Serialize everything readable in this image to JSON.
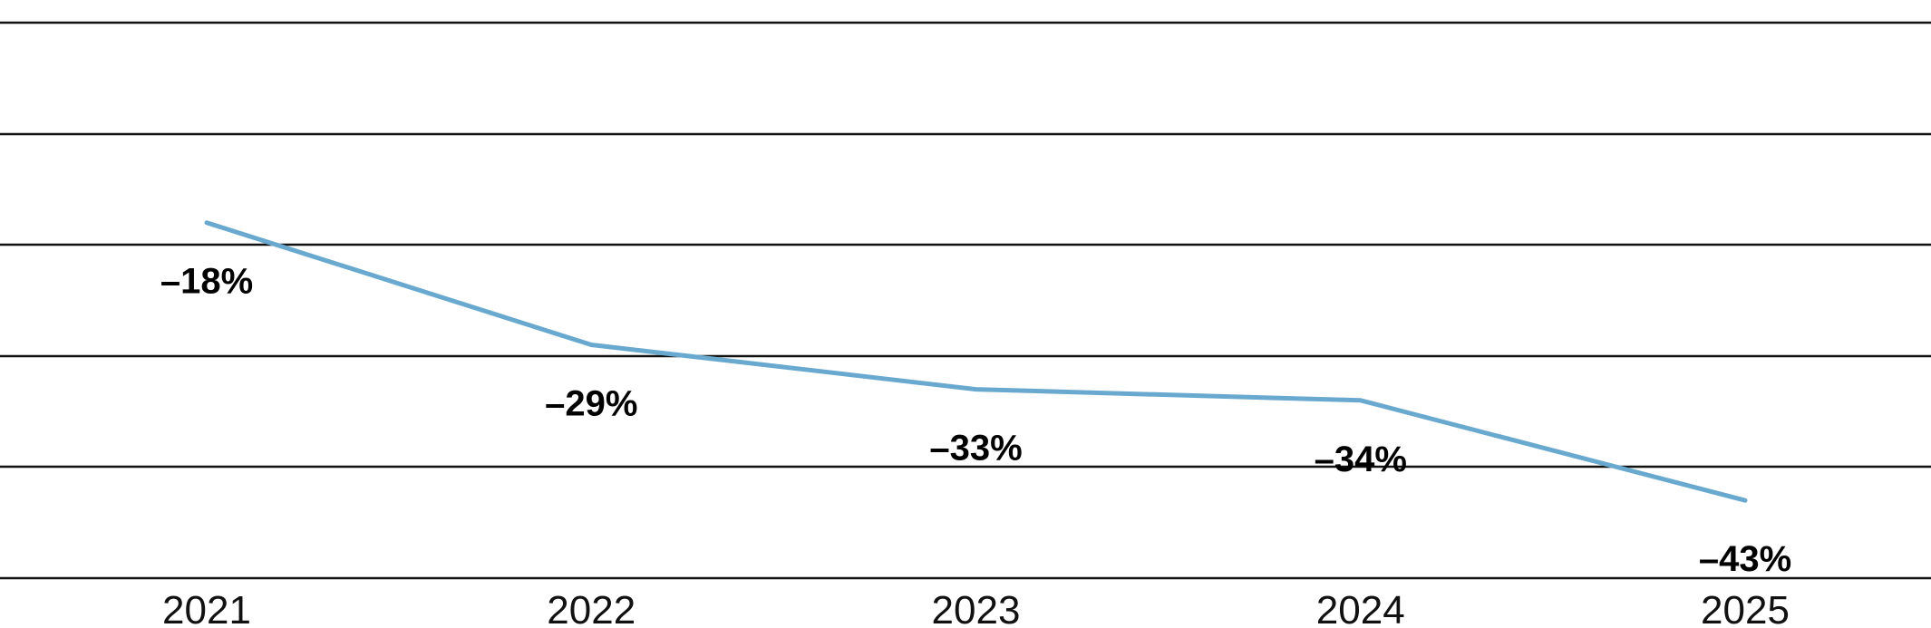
{
  "chart_data": {
    "type": "line",
    "categories": [
      "2021",
      "2022",
      "2023",
      "2024",
      "2025"
    ],
    "series": [
      {
        "values": [
          -18,
          -29,
          -33,
          -34,
          -43
        ]
      }
    ],
    "data_labels": [
      "–18%",
      "–29%",
      "–33%",
      "–34%",
      "–43%"
    ],
    "title": "",
    "xlabel": "",
    "ylabel": "",
    "ylim": [
      -50,
      0
    ],
    "grid": true,
    "legend": "none",
    "colors": {
      "series": "#6aa9cf",
      "grid": "#111111"
    }
  }
}
